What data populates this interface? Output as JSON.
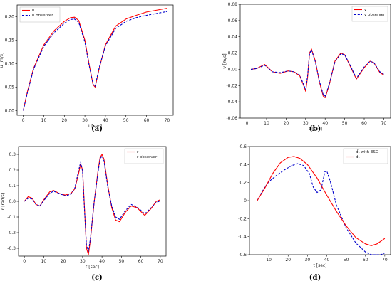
{
  "chart_data": [
    {
      "type": "line",
      "caption": "(a)",
      "xlabel": "t [sec]",
      "ylabel": "u [m/s]",
      "xlim": [
        -3,
        73
      ],
      "ylim": [
        -0.01,
        0.225
      ],
      "xticks": [
        0,
        10,
        20,
        30,
        40,
        50,
        60,
        70
      ],
      "yticks": [
        0.0,
        0.05,
        0.1,
        0.15,
        0.2
      ],
      "ytick_labels": [
        "0.00",
        "0.05",
        "0.10",
        "0.15",
        "0.20"
      ],
      "legend": "top-left",
      "series": [
        {
          "name": "u",
          "color": "#ff0000",
          "dash": "solid",
          "x": [
            0,
            2,
            5,
            10,
            15,
            20,
            23,
            25,
            27,
            30,
            32,
            34,
            35,
            37,
            40,
            45,
            50,
            55,
            60,
            65,
            70
          ],
          "y": [
            0.0,
            0.04,
            0.09,
            0.14,
            0.17,
            0.19,
            0.198,
            0.199,
            0.192,
            0.15,
            0.1,
            0.055,
            0.05,
            0.09,
            0.14,
            0.18,
            0.195,
            0.203,
            0.21,
            0.214,
            0.218
          ]
        },
        {
          "name": "u  observer",
          "color": "#0000cc",
          "dash": "dashed",
          "x": [
            0,
            2,
            5,
            10,
            15,
            20,
            23,
            25,
            27,
            30,
            32,
            34,
            35,
            37,
            40,
            45,
            50,
            55,
            60,
            65,
            70
          ],
          "y": [
            0.0,
            0.038,
            0.088,
            0.137,
            0.166,
            0.186,
            0.194,
            0.195,
            0.188,
            0.146,
            0.098,
            0.056,
            0.052,
            0.092,
            0.138,
            0.175,
            0.19,
            0.198,
            0.203,
            0.207,
            0.211
          ]
        }
      ]
    },
    {
      "type": "line",
      "caption": "(b)",
      "xlabel": "t [sec]",
      "ylabel": "v [m/s]",
      "xlim": [
        -3.5,
        73.5
      ],
      "ylim": [
        -0.06,
        0.08
      ],
      "xticks": [
        0,
        10,
        20,
        30,
        40,
        50,
        60,
        70
      ],
      "yticks": [
        -0.06,
        -0.04,
        -0.02,
        0.0,
        0.02,
        0.04,
        0.06,
        0.08
      ],
      "ytick_labels": [
        "-0.06",
        "-0.04",
        "-0.02",
        "0.00",
        "0.02",
        "0.04",
        "0.06",
        "0.08"
      ],
      "legend": "top-right",
      "series": [
        {
          "name": "v",
          "color": "#ff0000",
          "dash": "solid",
          "x": [
            2,
            5,
            9,
            13,
            17,
            21,
            24,
            27,
            29,
            30,
            31,
            32,
            33,
            35,
            37,
            39,
            40,
            42,
            45,
            48,
            50,
            53,
            56,
            60,
            63,
            65,
            68,
            70
          ],
          "y": [
            0.0,
            0.001,
            0.006,
            -0.003,
            -0.005,
            -0.002,
            -0.003,
            -0.008,
            -0.02,
            -0.027,
            -0.01,
            0.02,
            0.025,
            0.01,
            -0.015,
            -0.033,
            -0.035,
            -0.02,
            0.01,
            0.02,
            0.018,
            0.003,
            -0.012,
            0.002,
            0.01,
            0.008,
            -0.004,
            -0.007
          ]
        },
        {
          "name": "v  observer",
          "color": "#0000cc",
          "dash": "dashed",
          "x": [
            2,
            5,
            9,
            13,
            17,
            21,
            24,
            27,
            29,
            30,
            31,
            32,
            33,
            35,
            37,
            39,
            40,
            42,
            45,
            48,
            50,
            53,
            56,
            60,
            63,
            65,
            68,
            70
          ],
          "y": [
            0.0,
            0.001,
            0.005,
            -0.003,
            -0.004,
            -0.002,
            -0.003,
            -0.007,
            -0.019,
            -0.025,
            -0.008,
            0.019,
            0.024,
            0.009,
            -0.014,
            -0.031,
            -0.033,
            -0.019,
            0.009,
            0.019,
            0.018,
            0.004,
            -0.011,
            0.003,
            0.01,
            0.008,
            -0.003,
            -0.006
          ]
        }
      ]
    },
    {
      "type": "line",
      "caption": "(c)",
      "xlabel": "t [sec]",
      "ylabel": "r [rad/s]",
      "xlim": [
        -3,
        73
      ],
      "ylim": [
        -0.35,
        0.35
      ],
      "xticks": [
        0,
        10,
        20,
        30,
        40,
        50,
        60,
        70
      ],
      "yticks": [
        -0.3,
        -0.2,
        -0.1,
        0.0,
        0.1,
        0.2,
        0.3
      ],
      "ytick_labels": [
        "-0.3",
        "-0.2",
        "-0.1",
        "0.0",
        "0.1",
        "0.2",
        "0.3"
      ],
      "legend": "top-right",
      "series": [
        {
          "name": "r",
          "color": "#ff0000",
          "dash": "solid",
          "x": [
            0,
            2,
            4,
            6,
            8,
            10,
            13,
            15,
            18,
            21,
            24,
            26,
            28,
            29,
            30,
            31,
            32,
            33,
            34,
            36,
            38,
            39,
            40,
            41,
            43,
            45,
            47,
            49,
            52,
            55,
            58,
            62,
            65,
            68,
            70
          ],
          "y": [
            0.0,
            0.03,
            0.02,
            -0.02,
            -0.03,
            0.01,
            0.06,
            0.07,
            0.05,
            0.04,
            0.05,
            0.08,
            0.18,
            0.24,
            0.2,
            -0.05,
            -0.3,
            -0.34,
            -0.25,
            0.0,
            0.2,
            0.28,
            0.3,
            0.27,
            0.1,
            -0.04,
            -0.12,
            -0.13,
            -0.07,
            -0.03,
            -0.04,
            -0.09,
            -0.05,
            0.0,
            0.01
          ]
        },
        {
          "name": "r  observer",
          "color": "#0000cc",
          "dash": "dashed",
          "x": [
            0,
            2,
            4,
            6,
            8,
            10,
            13,
            15,
            18,
            21,
            24,
            26,
            28,
            29,
            30,
            31,
            32,
            33,
            34,
            36,
            38,
            39,
            40,
            41,
            43,
            45,
            47,
            49,
            52,
            55,
            58,
            62,
            65,
            68,
            70
          ],
          "y": [
            0.0,
            0.02,
            0.015,
            -0.02,
            -0.03,
            0.005,
            0.05,
            0.065,
            0.05,
            0.035,
            0.045,
            0.085,
            0.2,
            0.25,
            0.19,
            -0.06,
            -0.28,
            -0.32,
            -0.24,
            0.0,
            0.19,
            0.27,
            0.29,
            0.26,
            0.09,
            -0.03,
            -0.1,
            -0.115,
            -0.06,
            -0.02,
            -0.035,
            -0.08,
            -0.045,
            -0.005,
            0.0
          ]
        }
      ]
    },
    {
      "type": "line",
      "caption": "(d)",
      "xlabel": "t [sec]",
      "ylabel": "",
      "xlim": [
        0,
        73
      ],
      "ylim": [
        -0.6,
        0.6
      ],
      "xticks": [
        10,
        20,
        30,
        40,
        50,
        60,
        70
      ],
      "yticks": [
        -0.6,
        -0.4,
        -0.2,
        0.0,
        0.2,
        0.4,
        0.6
      ],
      "ytick_labels": [
        "-0.6",
        "-0.4",
        "-0.2",
        "0",
        "0.2",
        "0.4",
        "0.6"
      ],
      "legend": "top-right",
      "series": [
        {
          "name": "d̂₁ with ESO",
          "color": "#0000cc",
          "dash": "dashed",
          "x": [
            4,
            6,
            8,
            10,
            14,
            18,
            22,
            25,
            28,
            31,
            33,
            35,
            37,
            39,
            40,
            42,
            45,
            50,
            55,
            60,
            63,
            66,
            68,
            70
          ],
          "y": [
            0.0,
            0.08,
            0.15,
            0.21,
            0.28,
            0.34,
            0.39,
            0.41,
            0.39,
            0.3,
            0.15,
            0.09,
            0.12,
            0.32,
            0.33,
            0.2,
            -0.05,
            -0.3,
            -0.47,
            -0.57,
            -0.6,
            -0.6,
            -0.6,
            -0.58
          ]
        },
        {
          "name": "d₁",
          "color": "#ff0000",
          "dash": "solid",
          "x": [
            4,
            8,
            12,
            16,
            20,
            23,
            26,
            30,
            35,
            40,
            45,
            50,
            55,
            60,
            63,
            66,
            68,
            70
          ],
          "y": [
            0.0,
            0.14,
            0.3,
            0.42,
            0.48,
            0.49,
            0.47,
            0.4,
            0.25,
            0.06,
            -0.12,
            -0.28,
            -0.41,
            -0.48,
            -0.5,
            -0.48,
            -0.45,
            -0.42
          ]
        }
      ]
    }
  ]
}
